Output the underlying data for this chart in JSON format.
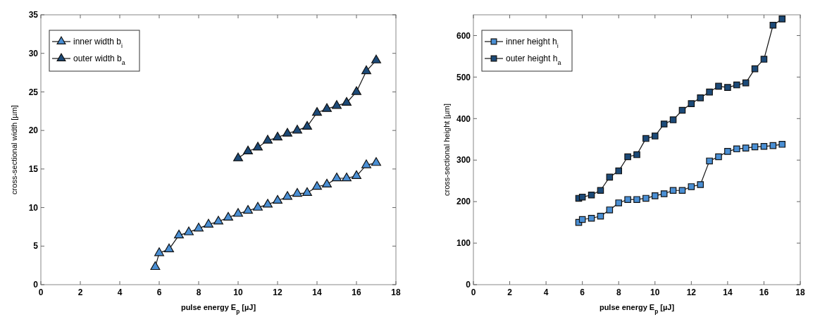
{
  "chart_data": [
    {
      "type": "line",
      "xlabel": "pulse energy E$_{p}$ [µJ]",
      "ylabel": "cross-sectional width [µm]",
      "xlim": [
        0,
        18
      ],
      "ylim": [
        0,
        35
      ],
      "xticks": [
        0,
        2,
        4,
        6,
        8,
        10,
        12,
        14,
        16,
        18
      ],
      "yticks": [
        0,
        5,
        10,
        15,
        20,
        25,
        30,
        35
      ],
      "marker": "triangle",
      "legend": "top left",
      "grid": false,
      "series": [
        {
          "name": "inner width b$_{i}$",
          "color": "#4a8fd4",
          "x": [
            5.8,
            6,
            6.5,
            7,
            7.5,
            8,
            8.5,
            9,
            9.5,
            10,
            10.5,
            11,
            11.5,
            12,
            12.5,
            13,
            13.5,
            14,
            14.5,
            15,
            15.5,
            16,
            16.5,
            17
          ],
          "values": [
            2.3,
            4.1,
            4.6,
            6.4,
            6.8,
            7.3,
            7.8,
            8.2,
            8.7,
            9.2,
            9.6,
            10.0,
            10.4,
            10.9,
            11.4,
            11.8,
            11.9,
            12.7,
            13.0,
            13.8,
            13.8,
            14.1,
            15.5,
            15.8
          ]
        },
        {
          "name": "outer width b$_{a}$",
          "color": "#1c4a78",
          "x": [
            10,
            10.5,
            11,
            11.5,
            12,
            12.5,
            13,
            13.5,
            14,
            14.5,
            15,
            15.5,
            16,
            16.5,
            17
          ],
          "values": [
            16.4,
            17.3,
            17.8,
            18.7,
            19.1,
            19.6,
            20.0,
            20.5,
            22.3,
            22.8,
            23.2,
            23.6,
            25.0,
            27.7,
            29.1
          ]
        }
      ]
    },
    {
      "type": "line",
      "xlabel": "pulse energy E$_{p}$ [µJ]",
      "ylabel": "cross-sectional height [µm]",
      "xlim": [
        0,
        18
      ],
      "ylim": [
        0,
        650
      ],
      "xticks": [
        0,
        2,
        4,
        6,
        8,
        10,
        12,
        14,
        16,
        18
      ],
      "yticks": [
        0,
        100,
        200,
        300,
        400,
        500,
        600
      ],
      "marker": "square",
      "legend": "top left",
      "grid": false,
      "series": [
        {
          "name": "inner height h$_{i}$",
          "color": "#4a8fd4",
          "x": [
            5.8,
            6,
            6.5,
            7,
            7.5,
            8,
            8.5,
            9,
            9.5,
            10,
            10.5,
            11,
            11.5,
            12,
            12.5,
            13,
            13.5,
            14,
            14.5,
            15,
            15.5,
            16,
            16.5,
            17
          ],
          "values": [
            150,
            157,
            160,
            165,
            180,
            197,
            205,
            205,
            208,
            214,
            219,
            227,
            227,
            236,
            241,
            298,
            308,
            321,
            327,
            329,
            332,
            333,
            335,
            338
          ]
        },
        {
          "name": "outer height h$_{a}$",
          "color": "#1c4a78",
          "x": [
            5.8,
            6,
            6.5,
            7,
            7.5,
            8,
            8.5,
            9,
            9.5,
            10,
            10.5,
            11,
            11.5,
            12,
            12.5,
            13,
            13.5,
            14,
            14.5,
            15,
            15.5,
            16,
            16.5,
            17
          ],
          "values": [
            208,
            211,
            216,
            227,
            259,
            274,
            308,
            313,
            352,
            358,
            387,
            397,
            420,
            436,
            450,
            464,
            478,
            475,
            481,
            486,
            520,
            543,
            625,
            640
          ]
        }
      ]
    }
  ]
}
